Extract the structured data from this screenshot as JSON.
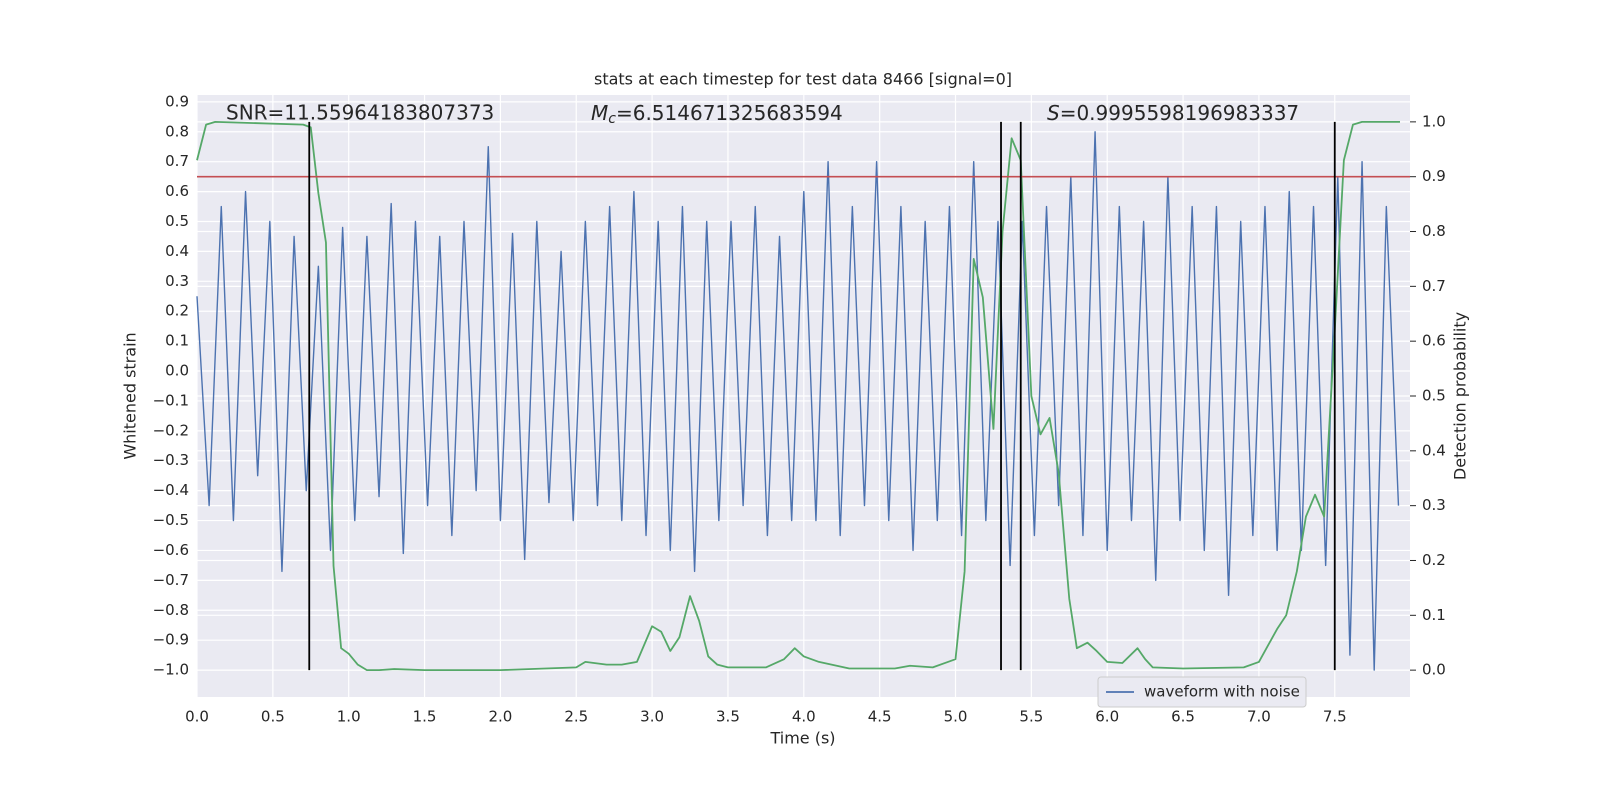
{
  "chart_data": {
    "type": "line",
    "title": "stats at each timestep for test data 8466 [signal=0]",
    "xlabel": "Time (s)",
    "ylabel": "Whitened strain",
    "y2label": "Detection probability",
    "xlim": [
      0,
      7.996
    ],
    "ylim": [
      -1.09,
      0.923
    ],
    "y2lim": [
      -0.049,
      1.049
    ],
    "xticks": [
      {
        "value": 0,
        "label": "0.0"
      },
      {
        "value": 0.5,
        "label": "0.5"
      },
      {
        "value": 1,
        "label": "1.0"
      },
      {
        "value": 1.5,
        "label": "1.5"
      },
      {
        "value": 2,
        "label": "2.0"
      },
      {
        "value": 2.5,
        "label": "2.5"
      },
      {
        "value": 3,
        "label": "3.0"
      },
      {
        "value": 3.5,
        "label": "3.5"
      },
      {
        "value": 4,
        "label": "4.0"
      },
      {
        "value": 4.5,
        "label": "4.5"
      },
      {
        "value": 5,
        "label": "5.0"
      },
      {
        "value": 5.5,
        "label": "5.5"
      },
      {
        "value": 6,
        "label": "6.0"
      },
      {
        "value": 6.5,
        "label": "6.5"
      },
      {
        "value": 7,
        "label": "7.0"
      },
      {
        "value": 7.5,
        "label": "7.5"
      }
    ],
    "yticks": [
      {
        "value": -1,
        "label": "−1.0"
      },
      {
        "value": -0.9,
        "label": "−0.9"
      },
      {
        "value": -0.8,
        "label": "−0.8"
      },
      {
        "value": -0.7,
        "label": "−0.7"
      },
      {
        "value": -0.6,
        "label": "−0.6"
      },
      {
        "value": -0.5,
        "label": "−0.5"
      },
      {
        "value": -0.4,
        "label": "−0.4"
      },
      {
        "value": -0.3,
        "label": "−0.3"
      },
      {
        "value": -0.2,
        "label": "−0.2"
      },
      {
        "value": -0.1,
        "label": "−0.1"
      },
      {
        "value": 0,
        "label": "0.0"
      },
      {
        "value": 0.1,
        "label": "0.1"
      },
      {
        "value": 0.2,
        "label": "0.2"
      },
      {
        "value": 0.3,
        "label": "0.3"
      },
      {
        "value": 0.4,
        "label": "0.4"
      },
      {
        "value": 0.5,
        "label": "0.5"
      },
      {
        "value": 0.6,
        "label": "0.6"
      },
      {
        "value": 0.7,
        "label": "0.7"
      },
      {
        "value": 0.8,
        "label": "0.8"
      },
      {
        "value": 0.9,
        "label": "0.9"
      }
    ],
    "y2ticks": [
      {
        "value": 0,
        "label": "0.0"
      },
      {
        "value": 0.1,
        "label": "0.1"
      },
      {
        "value": 0.2,
        "label": "0.2"
      },
      {
        "value": 0.3,
        "label": "0.3"
      },
      {
        "value": 0.4,
        "label": "0.4"
      },
      {
        "value": 0.5,
        "label": "0.5"
      },
      {
        "value": 0.6,
        "label": "0.6"
      },
      {
        "value": 0.7,
        "label": "0.7"
      },
      {
        "value": 0.8,
        "label": "0.8"
      },
      {
        "value": 0.9,
        "label": "0.9"
      },
      {
        "value": 1,
        "label": "1.0"
      }
    ],
    "grid": true,
    "legend": "lower right",
    "series": [
      {
        "name": "waveform with noise",
        "color": "#4c72b0",
        "axis": "y",
        "x": [
          0,
          0.08,
          0.16,
          0.24,
          0.32,
          0.4,
          0.48,
          0.56,
          0.64,
          0.72,
          0.8,
          0.88,
          0.96,
          1.04,
          1.12,
          1.2,
          1.28,
          1.36,
          1.44,
          1.52,
          1.6,
          1.68,
          1.76,
          1.84,
          1.92,
          2,
          2.08,
          2.16,
          2.24,
          2.32,
          2.4,
          2.48,
          2.56,
          2.64,
          2.72,
          2.8,
          2.88,
          2.96,
          3.04,
          3.12,
          3.2,
          3.28,
          3.36,
          3.44,
          3.52,
          3.6,
          3.68,
          3.76,
          3.84,
          3.92,
          4,
          4.08,
          4.16,
          4.24,
          4.32,
          4.4,
          4.48,
          4.56,
          4.64,
          4.72,
          4.8,
          4.88,
          4.96,
          5.04,
          5.12,
          5.2,
          5.28,
          5.36,
          5.44,
          5.52,
          5.6,
          5.68,
          5.76,
          5.84,
          5.92,
          6,
          6.08,
          6.16,
          6.24,
          6.32,
          6.4,
          6.48,
          6.56,
          6.64,
          6.72,
          6.8,
          6.88,
          6.96,
          7.04,
          7.12,
          7.2,
          7.28,
          7.36,
          7.44,
          7.52,
          7.6,
          7.68,
          7.76,
          7.84,
          7.92
        ],
        "values": [
          0.25,
          -0.45,
          0.55,
          -0.5,
          0.6,
          -0.35,
          0.5,
          -0.67,
          0.45,
          -0.4,
          0.35,
          -0.6,
          0.48,
          -0.5,
          0.45,
          -0.42,
          0.56,
          -0.61,
          0.5,
          -0.45,
          0.45,
          -0.55,
          0.5,
          -0.4,
          0.75,
          -0.5,
          0.46,
          -0.63,
          0.5,
          -0.44,
          0.4,
          -0.5,
          0.5,
          -0.45,
          0.55,
          -0.5,
          0.6,
          -0.55,
          0.5,
          -0.6,
          0.55,
          -0.67,
          0.5,
          -0.5,
          0.5,
          -0.45,
          0.55,
          -0.55,
          0.45,
          -0.5,
          0.6,
          -0.5,
          0.7,
          -0.55,
          0.55,
          -0.45,
          0.7,
          -0.5,
          0.55,
          -0.6,
          0.5,
          -0.5,
          0.55,
          -0.55,
          0.7,
          -0.5,
          0.5,
          -0.65,
          0.5,
          -0.55,
          0.55,
          -0.45,
          0.65,
          -0.55,
          0.8,
          -0.6,
          0.55,
          -0.5,
          0.5,
          -0.7,
          0.65,
          -0.5,
          0.55,
          -0.6,
          0.55,
          -0.75,
          0.5,
          -0.55,
          0.55,
          -0.6,
          0.6,
          -0.6,
          0.55,
          -0.65,
          0.65,
          -0.95,
          0.7,
          -1.0,
          0.55,
          -0.45
        ]
      },
      {
        "color": "#55a868",
        "axis": "y2",
        "x": [
          0,
          0.06,
          0.12,
          0.7,
          0.75,
          0.8,
          0.85,
          0.9,
          0.95,
          1.0,
          1.06,
          1.12,
          1.2,
          1.3,
          1.5,
          2.0,
          2.5,
          2.56,
          2.7,
          2.8,
          2.9,
          3.0,
          3.06,
          3.12,
          3.18,
          3.25,
          3.31,
          3.37,
          3.43,
          3.5,
          3.75,
          3.87,
          3.94,
          4.0,
          4.1,
          4.3,
          4.6,
          4.7,
          4.85,
          4.95,
          5.0,
          5.06,
          5.12,
          5.18,
          5.25,
          5.31,
          5.37,
          5.43,
          5.5,
          5.56,
          5.62,
          5.68,
          5.75,
          5.8,
          5.87,
          5.93,
          6.0,
          6.1,
          6.2,
          6.25,
          6.3,
          6.5,
          6.9,
          7.0,
          7.06,
          7.12,
          7.18,
          7.25,
          7.31,
          7.37,
          7.43,
          7.5,
          7.56,
          7.62,
          7.68,
          7.93
        ],
        "values": [
          0.93,
          0.995,
          1.0,
          0.995,
          0.99,
          0.87,
          0.78,
          0.19,
          0.04,
          0.03,
          0.01,
          0.0,
          0.0,
          0.002,
          0.0,
          0.0,
          0.005,
          0.015,
          0.01,
          0.01,
          0.015,
          0.08,
          0.07,
          0.035,
          0.06,
          0.135,
          0.09,
          0.025,
          0.01,
          0.005,
          0.005,
          0.02,
          0.04,
          0.025,
          0.015,
          0.003,
          0.003,
          0.008,
          0.005,
          0.015,
          0.02,
          0.18,
          0.75,
          0.68,
          0.44,
          0.8,
          0.97,
          0.93,
          0.5,
          0.43,
          0.46,
          0.36,
          0.13,
          0.04,
          0.05,
          0.035,
          0.015,
          0.013,
          0.04,
          0.02,
          0.005,
          0.003,
          0.005,
          0.015,
          0.045,
          0.075,
          0.1,
          0.18,
          0.28,
          0.32,
          0.28,
          0.62,
          0.93,
          0.995,
          1.0,
          1.0
        ]
      }
    ],
    "hlines": [
      {
        "value": 0.9,
        "axis": "y2",
        "color": "#c44e52"
      }
    ],
    "vlines": {
      "x": [
        0.74,
        5.3,
        5.43,
        7.5
      ],
      "y2range": [
        0,
        1
      ],
      "color": "#000000"
    },
    "annotations": {
      "snr": "SNR=11.55964183807373",
      "mc": {
        "symbol": "M",
        "subscript": "c",
        "text": "=6.514671325683594"
      },
      "s": {
        "symbol": "S",
        "text": "=0.9995598196983337"
      }
    }
  }
}
